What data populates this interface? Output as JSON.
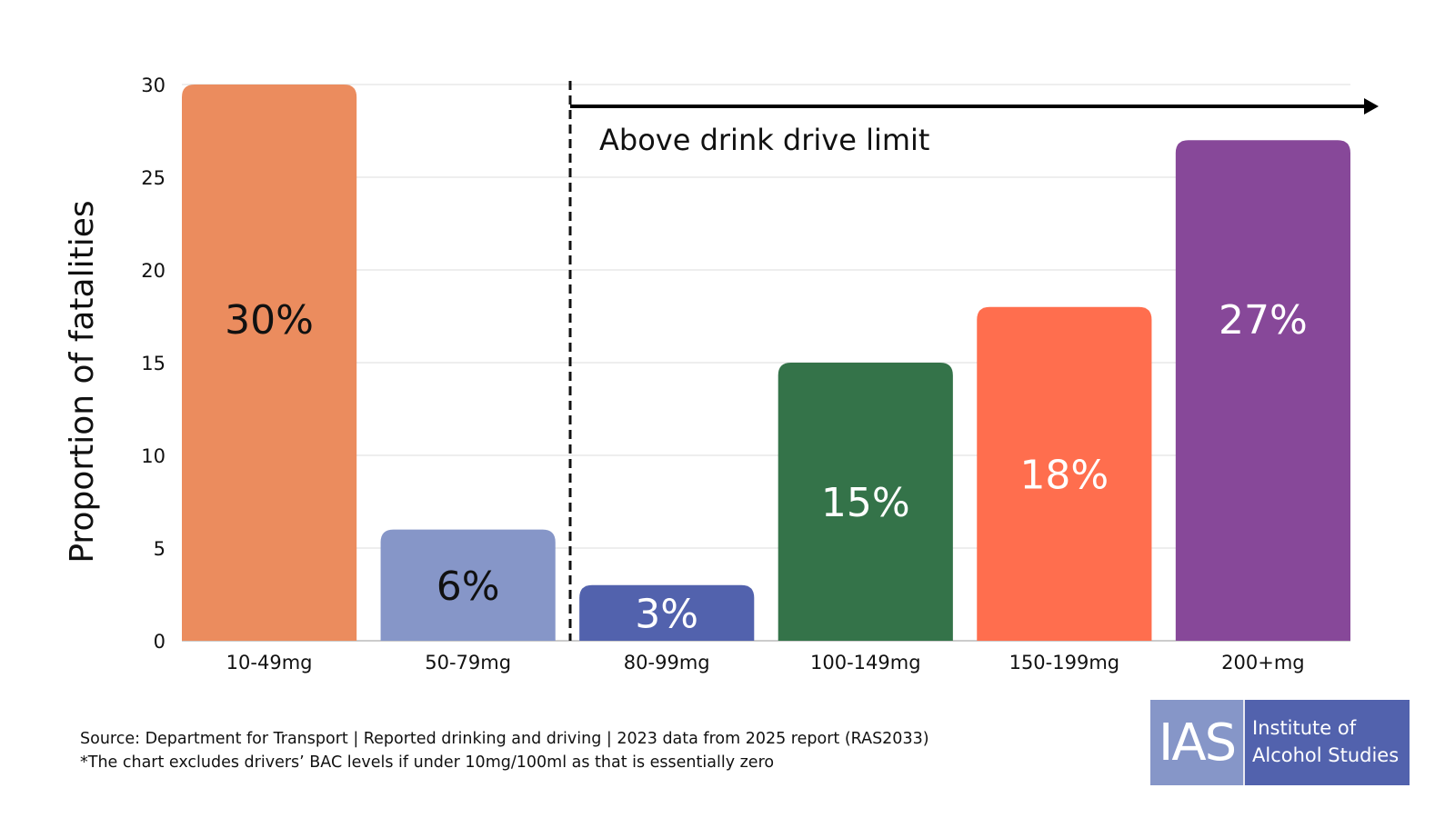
{
  "chart_data": {
    "type": "bar",
    "title": "",
    "xlabel": "",
    "ylabel": "Proportion of fatalities",
    "ylim": [
      0,
      30
    ],
    "yticks": [
      0,
      5,
      10,
      15,
      20,
      25,
      30
    ],
    "grid": true,
    "categories": [
      "10-49mg",
      "50-79mg",
      "80-99mg",
      "100-149mg",
      "150-199mg",
      "200+mg"
    ],
    "values": [
      30,
      6,
      3,
      15,
      18,
      27
    ],
    "data_labels": [
      "30%",
      "6%",
      "3%",
      "15%",
      "18%",
      "27%"
    ],
    "colors": [
      "#eb8c5e",
      "#8696c8",
      "#5262ad",
      "#347349",
      "#ff6e4e",
      "#874899"
    ],
    "label_colors": [
      "#111111",
      "#111111",
      "#ffffff",
      "#ffffff",
      "#ffffff",
      "#ffffff"
    ],
    "annotation": {
      "text": "Above drink drive limit",
      "divider_between": [
        "50-79mg",
        "80-99mg"
      ],
      "arrow_direction": "right"
    }
  },
  "footer": {
    "source": "Source: Department for Transport | Reported drinking and driving | 2023 data from 2025 report (RAS2033)",
    "note": "*The chart excludes drivers’ BAC levels if under 10mg/100ml as that is essentially zero"
  },
  "logo": {
    "abbr": "IAS",
    "line1": "Institute of",
    "line2": "Alcohol Studies"
  }
}
